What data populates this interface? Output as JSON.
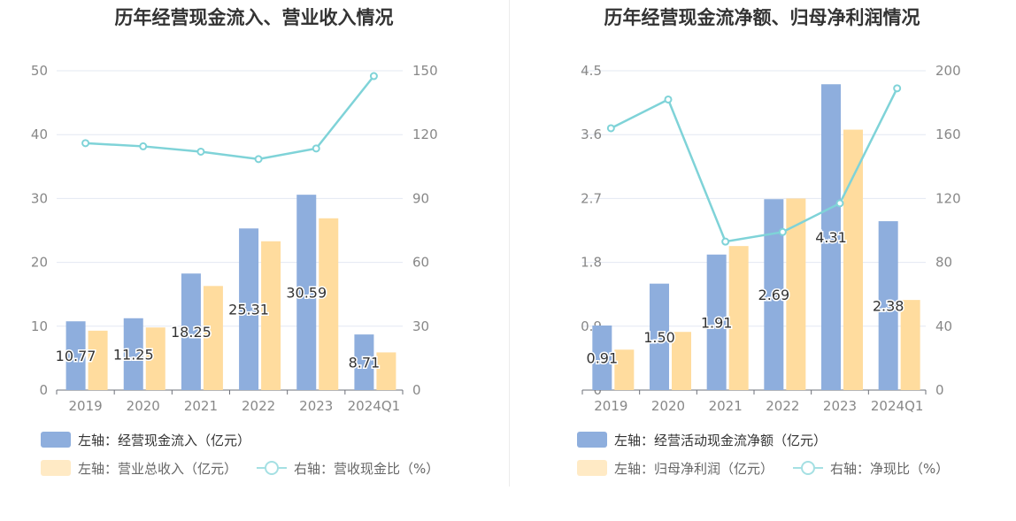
{
  "chart_data": [
    {
      "type": "bar",
      "title": "历年经营现金流入、营业收入情况",
      "categories": [
        "2019",
        "2020",
        "2021",
        "2022",
        "2023",
        "2024Q1"
      ],
      "left_axis": {
        "ticks": [
          "0",
          "10",
          "20",
          "30",
          "40",
          "50"
        ],
        "ylim": [
          0,
          50
        ]
      },
      "right_axis": {
        "ticks": [
          "0",
          "30",
          "60",
          "90",
          "120",
          "150"
        ],
        "ylim": [
          0,
          150
        ]
      },
      "series": [
        {
          "name": "左轴：经营现金流入（亿元）",
          "type": "bar",
          "axis": "left",
          "color": "#8eaedd",
          "values": [
            10.77,
            11.25,
            18.25,
            25.31,
            30.59,
            8.71
          ],
          "labels": [
            "10.77",
            "11.25",
            "18.25",
            "25.31",
            "30.59",
            "8.71"
          ]
        },
        {
          "name": "左轴：营业总收入（亿元）",
          "type": "bar",
          "axis": "left",
          "color": "#ffdc9e",
          "values": [
            9.3,
            9.8,
            16.3,
            23.3,
            26.9,
            5.9
          ]
        },
        {
          "name": "右轴：营收现金比（%）",
          "type": "line",
          "axis": "right",
          "color": "#7fd3d8",
          "values": [
            116,
            114.5,
            112,
            108.5,
            113.5,
            147.5
          ]
        }
      ],
      "grid": true,
      "legend_position": "bottom"
    },
    {
      "type": "bar",
      "title": "历年经营现金流净额、归母净利润情况",
      "categories": [
        "2019",
        "2020",
        "2021",
        "2022",
        "2023",
        "2024Q1"
      ],
      "left_axis": {
        "ticks": [
          "0",
          "0.9",
          "1.8",
          "2.7",
          "3.6",
          "4.5"
        ],
        "ylim": [
          0,
          4.5
        ]
      },
      "right_axis": {
        "ticks": [
          "0",
          "40",
          "80",
          "120",
          "160",
          "200"
        ],
        "ylim": [
          0,
          200
        ]
      },
      "series": [
        {
          "name": "左轴：经营活动现金流净额（亿元）",
          "type": "bar",
          "axis": "left",
          "color": "#8eaedd",
          "values": [
            0.91,
            1.5,
            1.91,
            2.69,
            4.31,
            2.38
          ],
          "labels": [
            "0.91",
            "1.50",
            "1.91",
            "2.69",
            "4.31",
            "2.38"
          ]
        },
        {
          "name": "左轴：归母净利润（亿元）",
          "type": "bar",
          "axis": "left",
          "color": "#ffdc9e",
          "values": [
            0.57,
            0.82,
            2.03,
            2.7,
            3.67,
            1.27
          ]
        },
        {
          "name": "右轴：净现比（%）",
          "type": "line",
          "axis": "right",
          "color": "#7fd3d8",
          "values": [
            164,
            182,
            93,
            99,
            117,
            189
          ]
        }
      ],
      "grid": true,
      "legend_position": "bottom"
    }
  ]
}
